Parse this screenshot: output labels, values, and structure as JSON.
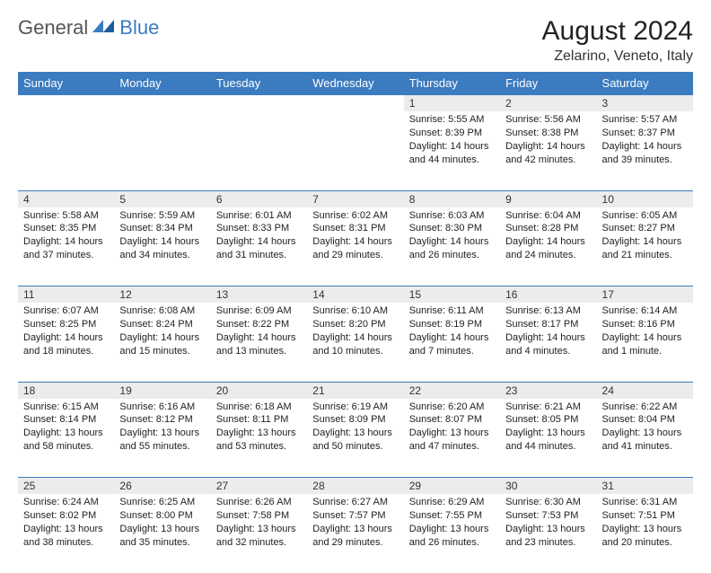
{
  "logo": {
    "part1": "General",
    "part2": "Blue"
  },
  "title": "August 2024",
  "location": "Zelarino, Veneto, Italy",
  "colors": {
    "headerBg": "#3b7bbf",
    "headerFg": "#ffffff",
    "dayBg": "#ececec",
    "border": "#3b7bbf"
  },
  "dayHeaders": [
    "Sunday",
    "Monday",
    "Tuesday",
    "Wednesday",
    "Thursday",
    "Friday",
    "Saturday"
  ],
  "weeks": [
    [
      null,
      null,
      null,
      null,
      {
        "n": "1",
        "sunrise": "5:55 AM",
        "sunset": "8:39 PM",
        "daylight": "14 hours and 44 minutes."
      },
      {
        "n": "2",
        "sunrise": "5:56 AM",
        "sunset": "8:38 PM",
        "daylight": "14 hours and 42 minutes."
      },
      {
        "n": "3",
        "sunrise": "5:57 AM",
        "sunset": "8:37 PM",
        "daylight": "14 hours and 39 minutes."
      }
    ],
    [
      {
        "n": "4",
        "sunrise": "5:58 AM",
        "sunset": "8:35 PM",
        "daylight": "14 hours and 37 minutes."
      },
      {
        "n": "5",
        "sunrise": "5:59 AM",
        "sunset": "8:34 PM",
        "daylight": "14 hours and 34 minutes."
      },
      {
        "n": "6",
        "sunrise": "6:01 AM",
        "sunset": "8:33 PM",
        "daylight": "14 hours and 31 minutes."
      },
      {
        "n": "7",
        "sunrise": "6:02 AM",
        "sunset": "8:31 PM",
        "daylight": "14 hours and 29 minutes."
      },
      {
        "n": "8",
        "sunrise": "6:03 AM",
        "sunset": "8:30 PM",
        "daylight": "14 hours and 26 minutes."
      },
      {
        "n": "9",
        "sunrise": "6:04 AM",
        "sunset": "8:28 PM",
        "daylight": "14 hours and 24 minutes."
      },
      {
        "n": "10",
        "sunrise": "6:05 AM",
        "sunset": "8:27 PM",
        "daylight": "14 hours and 21 minutes."
      }
    ],
    [
      {
        "n": "11",
        "sunrise": "6:07 AM",
        "sunset": "8:25 PM",
        "daylight": "14 hours and 18 minutes."
      },
      {
        "n": "12",
        "sunrise": "6:08 AM",
        "sunset": "8:24 PM",
        "daylight": "14 hours and 15 minutes."
      },
      {
        "n": "13",
        "sunrise": "6:09 AM",
        "sunset": "8:22 PM",
        "daylight": "14 hours and 13 minutes."
      },
      {
        "n": "14",
        "sunrise": "6:10 AM",
        "sunset": "8:20 PM",
        "daylight": "14 hours and 10 minutes."
      },
      {
        "n": "15",
        "sunrise": "6:11 AM",
        "sunset": "8:19 PM",
        "daylight": "14 hours and 7 minutes."
      },
      {
        "n": "16",
        "sunrise": "6:13 AM",
        "sunset": "8:17 PM",
        "daylight": "14 hours and 4 minutes."
      },
      {
        "n": "17",
        "sunrise": "6:14 AM",
        "sunset": "8:16 PM",
        "daylight": "14 hours and 1 minute."
      }
    ],
    [
      {
        "n": "18",
        "sunrise": "6:15 AM",
        "sunset": "8:14 PM",
        "daylight": "13 hours and 58 minutes."
      },
      {
        "n": "19",
        "sunrise": "6:16 AM",
        "sunset": "8:12 PM",
        "daylight": "13 hours and 55 minutes."
      },
      {
        "n": "20",
        "sunrise": "6:18 AM",
        "sunset": "8:11 PM",
        "daylight": "13 hours and 53 minutes."
      },
      {
        "n": "21",
        "sunrise": "6:19 AM",
        "sunset": "8:09 PM",
        "daylight": "13 hours and 50 minutes."
      },
      {
        "n": "22",
        "sunrise": "6:20 AM",
        "sunset": "8:07 PM",
        "daylight": "13 hours and 47 minutes."
      },
      {
        "n": "23",
        "sunrise": "6:21 AM",
        "sunset": "8:05 PM",
        "daylight": "13 hours and 44 minutes."
      },
      {
        "n": "24",
        "sunrise": "6:22 AM",
        "sunset": "8:04 PM",
        "daylight": "13 hours and 41 minutes."
      }
    ],
    [
      {
        "n": "25",
        "sunrise": "6:24 AM",
        "sunset": "8:02 PM",
        "daylight": "13 hours and 38 minutes."
      },
      {
        "n": "26",
        "sunrise": "6:25 AM",
        "sunset": "8:00 PM",
        "daylight": "13 hours and 35 minutes."
      },
      {
        "n": "27",
        "sunrise": "6:26 AM",
        "sunset": "7:58 PM",
        "daylight": "13 hours and 32 minutes."
      },
      {
        "n": "28",
        "sunrise": "6:27 AM",
        "sunset": "7:57 PM",
        "daylight": "13 hours and 29 minutes."
      },
      {
        "n": "29",
        "sunrise": "6:29 AM",
        "sunset": "7:55 PM",
        "daylight": "13 hours and 26 minutes."
      },
      {
        "n": "30",
        "sunrise": "6:30 AM",
        "sunset": "7:53 PM",
        "daylight": "13 hours and 23 minutes."
      },
      {
        "n": "31",
        "sunrise": "6:31 AM",
        "sunset": "7:51 PM",
        "daylight": "13 hours and 20 minutes."
      }
    ]
  ],
  "labels": {
    "sunrise": "Sunrise:",
    "sunset": "Sunset:",
    "daylight": "Daylight:"
  }
}
